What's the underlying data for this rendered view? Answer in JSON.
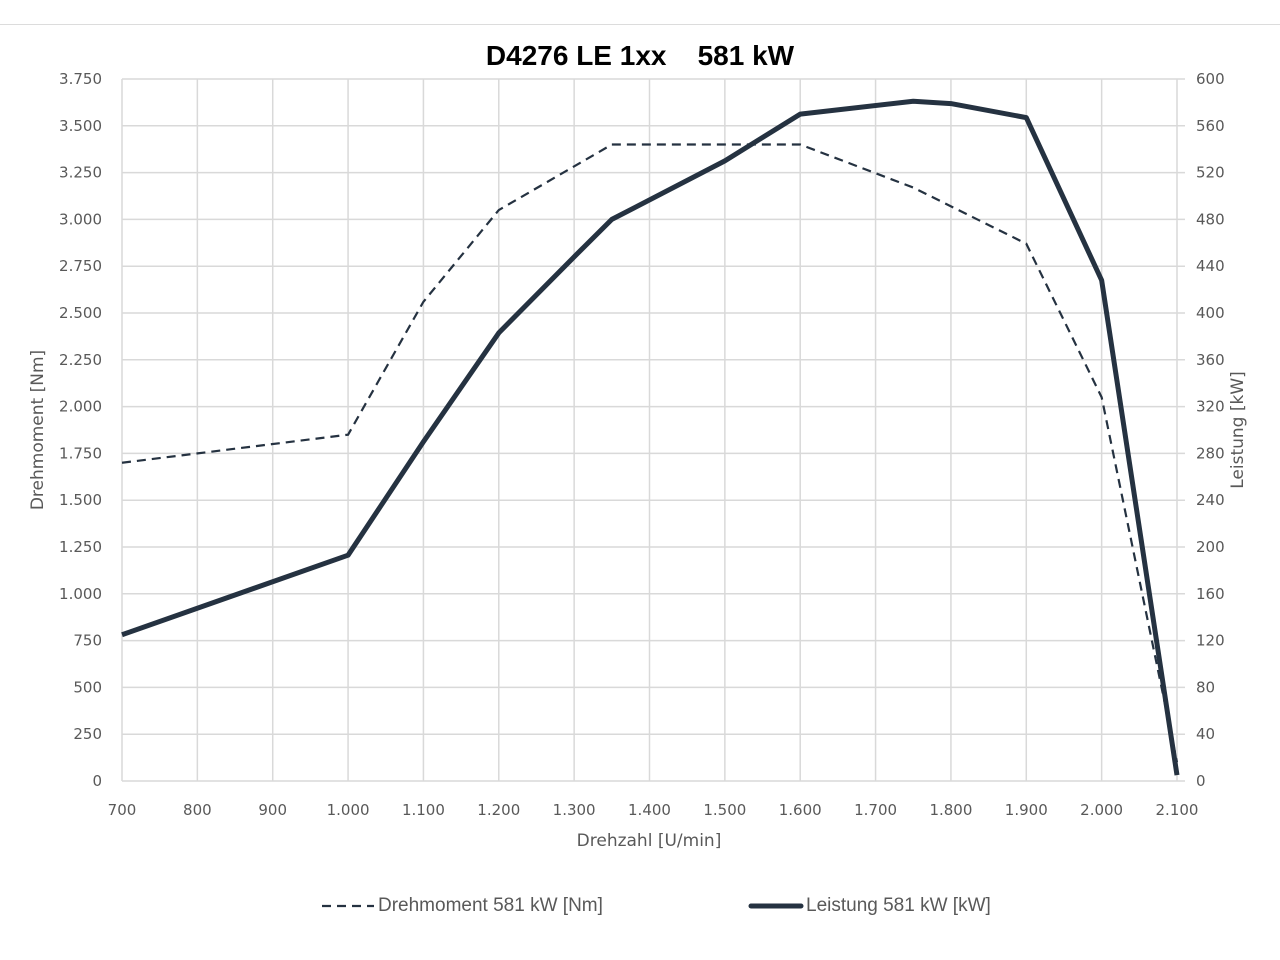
{
  "chart_data": {
    "type": "line",
    "title": "D4276 LE 1xx    581 kW",
    "xlabel": "Drehzahl [U/min]",
    "ylabel": "Drehmoment [Nm]",
    "y2label": "Leistung [kW]",
    "xlim": [
      700,
      2100
    ],
    "ylim": [
      0,
      3750
    ],
    "y2lim": [
      0,
      600
    ],
    "x_ticks": [
      "700",
      "800",
      "900",
      "1.000",
      "1.100",
      "1.200",
      "1.300",
      "1.400",
      "1.500",
      "1.600",
      "1.700",
      "1.800",
      "1.900",
      "2.000",
      "2.100"
    ],
    "y_ticks": [
      "0",
      "250",
      "500",
      "750",
      "1.000",
      "1.250",
      "1.500",
      "1.750",
      "2.000",
      "2.250",
      "2.500",
      "2.750",
      "3.000",
      "3.250",
      "3.500",
      "3.750"
    ],
    "y2_ticks": [
      "0",
      "40",
      "80",
      "120",
      "160",
      "200",
      "240",
      "280",
      "320",
      "360",
      "400",
      "440",
      "480",
      "520",
      "560",
      "600"
    ],
    "grid": true,
    "legend_position": "bottom",
    "series": [
      {
        "name": "Drehmoment 581 kW [Nm]",
        "axis": "left",
        "style": "dashed",
        "color": "#253241",
        "x": [
          700,
          1000,
          1100,
          1200,
          1350,
          1600,
          1750,
          1900,
          2000,
          2100
        ],
        "values": [
          1700,
          1850,
          2560,
          3050,
          3400,
          3400,
          3170,
          2870,
          2050,
          100
        ]
      },
      {
        "name": "Leistung 581 kW [kW]",
        "axis": "right",
        "style": "solid",
        "color": "#253241",
        "x": [
          700,
          1000,
          1100,
          1200,
          1300,
          1350,
          1500,
          1600,
          1750,
          1800,
          1900,
          2000,
          2100
        ],
        "values": [
          125,
          193,
          290,
          383,
          448,
          480,
          530,
          570,
          581,
          579,
          567,
          428,
          5
        ]
      }
    ]
  },
  "colors": {
    "line": "#253241",
    "grid": "#d9d9d9",
    "tick_text": "#595959"
  }
}
